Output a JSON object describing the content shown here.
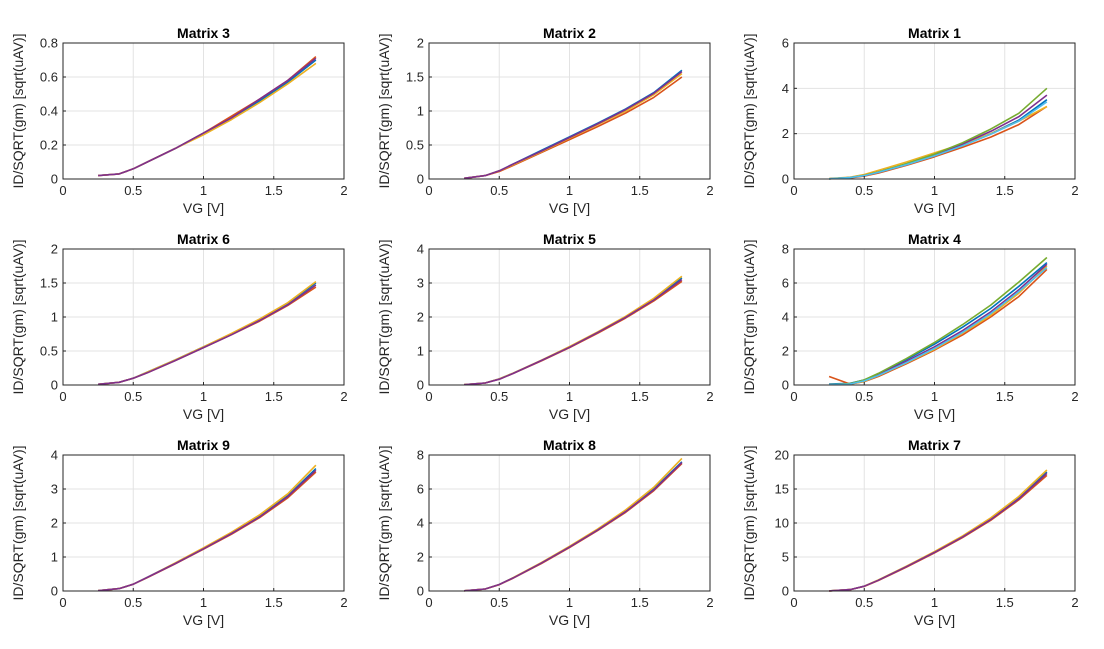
{
  "figure": {
    "shared_xlabel": "VG [V]",
    "shared_ylabel": "ID/SQRT(gm) [sqrt(uAV)]",
    "series_colors": [
      "#0072BD",
      "#D95319",
      "#EDB120",
      "#7E2F8E",
      "#77AC30",
      "#4DBEEE",
      "#A2142F"
    ]
  },
  "chart_data": [
    {
      "type": "line",
      "title": "Matrix 3",
      "xlabel": "VG [V]",
      "ylabel": "ID/SQRT(gm) [sqrt(uAV)]",
      "xlim": [
        0,
        2
      ],
      "ylim": [
        0,
        0.8
      ],
      "xticks": [
        0,
        0.5,
        1,
        1.5,
        2
      ],
      "xtick_labels": [
        "0",
        "0.5",
        "1",
        "1.5",
        "2"
      ],
      "yticks": [
        0,
        0.2,
        0.4,
        0.6,
        0.8
      ],
      "ytick_labels": [
        "0",
        "0.2",
        "0.4",
        "0.6",
        "0.8"
      ],
      "grid": true,
      "x": [
        0.25,
        0.4,
        0.5,
        0.6,
        0.8,
        1.0,
        1.2,
        1.4,
        1.6,
        1.8
      ],
      "series": [
        {
          "values": [
            0.02,
            0.03,
            0.06,
            0.1,
            0.18,
            0.27,
            0.36,
            0.46,
            0.57,
            0.7
          ]
        },
        {
          "values": [
            0.02,
            0.03,
            0.06,
            0.1,
            0.18,
            0.27,
            0.37,
            0.47,
            0.58,
            0.72
          ]
        },
        {
          "values": [
            0.02,
            0.03,
            0.06,
            0.1,
            0.18,
            0.26,
            0.35,
            0.45,
            0.56,
            0.68
          ]
        },
        {
          "values": [
            0.02,
            0.03,
            0.06,
            0.1,
            0.18,
            0.27,
            0.36,
            0.47,
            0.58,
            0.71
          ]
        }
      ]
    },
    {
      "type": "line",
      "title": "Matrix 2",
      "xlabel": "VG [V]",
      "ylabel": "ID/SQRT(gm) [sqrt(uAV)]",
      "xlim": [
        0,
        2
      ],
      "ylim": [
        0,
        2
      ],
      "xticks": [
        0,
        0.5,
        1,
        1.5,
        2
      ],
      "xtick_labels": [
        "0",
        "0.5",
        "1",
        "1.5",
        "2"
      ],
      "yticks": [
        0,
        0.5,
        1,
        1.5,
        2
      ],
      "ytick_labels": [
        "0",
        "0.5",
        "1",
        "1.5",
        "2"
      ],
      "grid": true,
      "x": [
        0.25,
        0.4,
        0.5,
        0.6,
        0.8,
        1.0,
        1.2,
        1.4,
        1.6,
        1.8
      ],
      "series": [
        {
          "values": [
            0.01,
            0.05,
            0.12,
            0.22,
            0.42,
            0.62,
            0.82,
            1.03,
            1.27,
            1.6
          ]
        },
        {
          "values": [
            0.01,
            0.05,
            0.11,
            0.2,
            0.39,
            0.58,
            0.77,
            0.97,
            1.2,
            1.5
          ]
        },
        {
          "values": [
            0.01,
            0.05,
            0.12,
            0.21,
            0.4,
            0.6,
            0.8,
            1.0,
            1.24,
            1.55
          ]
        },
        {
          "values": [
            0.01,
            0.05,
            0.12,
            0.22,
            0.41,
            0.61,
            0.81,
            1.02,
            1.26,
            1.58
          ]
        }
      ]
    },
    {
      "type": "line",
      "title": "Matrix 1",
      "xlabel": "VG [V]",
      "ylabel": "ID/SQRT(gm) [sqrt(uAV)]",
      "xlim": [
        0,
        2
      ],
      "ylim": [
        0,
        6
      ],
      "xticks": [
        0,
        0.5,
        1,
        1.5,
        2
      ],
      "xtick_labels": [
        "0",
        "0.5",
        "1",
        "1.5",
        "2"
      ],
      "yticks": [
        0,
        2,
        4,
        6
      ],
      "ytick_labels": [
        "0",
        "2",
        "4",
        "6"
      ],
      "grid": true,
      "x": [
        0.25,
        0.4,
        0.5,
        0.6,
        0.8,
        1.0,
        1.2,
        1.4,
        1.6,
        1.8
      ],
      "series": [
        {
          "values": [
            0.01,
            0.06,
            0.15,
            0.3,
            0.65,
            1.05,
            1.5,
            2.0,
            2.6,
            3.5
          ]
        },
        {
          "values": [
            0.01,
            0.05,
            0.13,
            0.26,
            0.6,
            0.98,
            1.4,
            1.85,
            2.4,
            3.2
          ]
        },
        {
          "values": [
            0.02,
            0.08,
            0.2,
            0.38,
            0.75,
            1.15,
            1.55,
            2.0,
            2.55,
            3.2
          ]
        },
        {
          "values": [
            0.01,
            0.06,
            0.15,
            0.3,
            0.66,
            1.07,
            1.55,
            2.1,
            2.75,
            3.7
          ]
        },
        {
          "values": [
            0.01,
            0.06,
            0.16,
            0.31,
            0.68,
            1.1,
            1.6,
            2.2,
            2.9,
            4.0
          ]
        },
        {
          "values": [
            0.01,
            0.06,
            0.15,
            0.29,
            0.63,
            1.02,
            1.47,
            1.97,
            2.55,
            3.4
          ]
        }
      ]
    },
    {
      "type": "line",
      "title": "Matrix 6",
      "xlabel": "VG [V]",
      "ylabel": "ID/SQRT(gm) [sqrt(uAV)]",
      "xlim": [
        0,
        2
      ],
      "ylim": [
        0,
        2
      ],
      "xticks": [
        0,
        0.5,
        1,
        1.5,
        2
      ],
      "xtick_labels": [
        "0",
        "0.5",
        "1",
        "1.5",
        "2"
      ],
      "yticks": [
        0,
        0.5,
        1,
        1.5,
        2
      ],
      "ytick_labels": [
        "0",
        "0.5",
        "1",
        "1.5",
        "2"
      ],
      "grid": true,
      "x": [
        0.25,
        0.4,
        0.5,
        0.6,
        0.8,
        1.0,
        1.2,
        1.4,
        1.6,
        1.8
      ],
      "series": [
        {
          "values": [
            0.01,
            0.04,
            0.1,
            0.19,
            0.37,
            0.56,
            0.75,
            0.96,
            1.2,
            1.5
          ]
        },
        {
          "values": [
            0.01,
            0.04,
            0.1,
            0.18,
            0.36,
            0.55,
            0.74,
            0.94,
            1.17,
            1.44
          ]
        },
        {
          "values": [
            0.01,
            0.04,
            0.1,
            0.19,
            0.37,
            0.56,
            0.76,
            0.97,
            1.21,
            1.52
          ]
        },
        {
          "values": [
            0.01,
            0.04,
            0.1,
            0.18,
            0.36,
            0.55,
            0.74,
            0.95,
            1.18,
            1.47
          ]
        }
      ]
    },
    {
      "type": "line",
      "title": "Matrix 5",
      "xlabel": "VG [V]",
      "ylabel": "ID/SQRT(gm) [sqrt(uAV)]",
      "xlim": [
        0,
        2
      ],
      "ylim": [
        0,
        4
      ],
      "xticks": [
        0,
        0.5,
        1,
        1.5,
        2
      ],
      "xtick_labels": [
        "0",
        "0.5",
        "1",
        "1.5",
        "2"
      ],
      "yticks": [
        0,
        1,
        2,
        3,
        4
      ],
      "ytick_labels": [
        "0",
        "1",
        "2",
        "3",
        "4"
      ],
      "grid": true,
      "x": [
        0.25,
        0.4,
        0.5,
        0.6,
        0.8,
        1.0,
        1.2,
        1.4,
        1.6,
        1.8
      ],
      "series": [
        {
          "values": [
            0.01,
            0.06,
            0.18,
            0.35,
            0.72,
            1.12,
            1.55,
            2.0,
            2.52,
            3.15
          ]
        },
        {
          "values": [
            0.01,
            0.06,
            0.17,
            0.34,
            0.71,
            1.1,
            1.52,
            1.97,
            2.47,
            3.05
          ]
        },
        {
          "values": [
            0.01,
            0.06,
            0.18,
            0.35,
            0.73,
            1.13,
            1.56,
            2.02,
            2.55,
            3.2
          ]
        },
        {
          "values": [
            0.01,
            0.06,
            0.17,
            0.34,
            0.72,
            1.11,
            1.54,
            1.99,
            2.5,
            3.1
          ]
        }
      ]
    },
    {
      "type": "line",
      "title": "Matrix 4",
      "xlabel": "VG [V]",
      "ylabel": "ID/SQRT(gm) [sqrt(uAV)]",
      "xlim": [
        0,
        2
      ],
      "ylim": [
        0,
        8
      ],
      "xticks": [
        0,
        0.5,
        1,
        1.5,
        2
      ],
      "xtick_labels": [
        "0",
        "0.5",
        "1",
        "1.5",
        "2"
      ],
      "yticks": [
        0,
        2,
        4,
        6,
        8
      ],
      "ytick_labels": [
        "0",
        "2",
        "4",
        "6",
        "8"
      ],
      "grid": true,
      "x": [
        0.25,
        0.4,
        0.5,
        0.6,
        0.8,
        1.0,
        1.2,
        1.4,
        1.6,
        1.8
      ],
      "series": [
        {
          "values": [
            0.05,
            0.1,
            0.3,
            0.65,
            1.5,
            2.4,
            3.4,
            4.5,
            5.8,
            7.2
          ]
        },
        {
          "values": [
            0.5,
            0.05,
            0.2,
            0.5,
            1.25,
            2.05,
            2.95,
            4.0,
            5.2,
            6.8
          ]
        },
        {
          "values": [
            0.02,
            0.06,
            0.22,
            0.55,
            1.3,
            2.1,
            3.05,
            4.1,
            5.4,
            7.0
          ]
        },
        {
          "values": [
            0.02,
            0.07,
            0.26,
            0.6,
            1.4,
            2.25,
            3.2,
            4.3,
            5.6,
            7.1
          ]
        },
        {
          "values": [
            0.02,
            0.08,
            0.3,
            0.68,
            1.55,
            2.5,
            3.55,
            4.7,
            6.05,
            7.5
          ]
        },
        {
          "values": [
            0.02,
            0.06,
            0.24,
            0.56,
            1.32,
            2.15,
            3.1,
            4.2,
            5.5,
            6.9
          ]
        }
      ]
    },
    {
      "type": "line",
      "title": "Matrix 9",
      "xlabel": "VG [V]",
      "ylabel": "ID/SQRT(gm) [sqrt(uAV)]",
      "xlim": [
        0,
        2
      ],
      "ylim": [
        0,
        4
      ],
      "xticks": [
        0,
        0.5,
        1,
        1.5,
        2
      ],
      "xtick_labels": [
        "0",
        "0.5",
        "1",
        "1.5",
        "2"
      ],
      "yticks": [
        0,
        1,
        2,
        3,
        4
      ],
      "ytick_labels": [
        "0",
        "1",
        "2",
        "3",
        "4"
      ],
      "grid": true,
      "x": [
        0.25,
        0.4,
        0.5,
        0.6,
        0.8,
        1.0,
        1.2,
        1.4,
        1.6,
        1.8
      ],
      "series": [
        {
          "values": [
            0.01,
            0.07,
            0.2,
            0.4,
            0.82,
            1.25,
            1.7,
            2.2,
            2.8,
            3.6
          ]
        },
        {
          "values": [
            0.01,
            0.07,
            0.2,
            0.39,
            0.8,
            1.23,
            1.67,
            2.16,
            2.74,
            3.5
          ]
        },
        {
          "values": [
            0.01,
            0.07,
            0.2,
            0.4,
            0.83,
            1.27,
            1.73,
            2.24,
            2.86,
            3.7
          ]
        },
        {
          "values": [
            0.01,
            0.07,
            0.2,
            0.4,
            0.81,
            1.24,
            1.69,
            2.18,
            2.78,
            3.55
          ]
        }
      ]
    },
    {
      "type": "line",
      "title": "Matrix 8",
      "xlabel": "VG [V]",
      "ylabel": "ID/SQRT(gm) [sqrt(uAV)]",
      "xlim": [
        0,
        2
      ],
      "ylim": [
        0,
        8
      ],
      "xticks": [
        0,
        0.5,
        1,
        1.5,
        2
      ],
      "xtick_labels": [
        "0",
        "0.5",
        "1",
        "1.5",
        "2"
      ],
      "yticks": [
        0,
        2,
        4,
        6,
        8
      ],
      "ytick_labels": [
        "0",
        "2",
        "4",
        "6",
        "8"
      ],
      "grid": true,
      "x": [
        0.25,
        0.4,
        0.5,
        0.6,
        0.8,
        1.0,
        1.2,
        1.4,
        1.6,
        1.8
      ],
      "series": [
        {
          "values": [
            0.01,
            0.12,
            0.38,
            0.78,
            1.65,
            2.6,
            3.6,
            4.7,
            6.0,
            7.6
          ]
        },
        {
          "values": [
            0.01,
            0.12,
            0.37,
            0.76,
            1.62,
            2.55,
            3.55,
            4.63,
            5.9,
            7.5
          ]
        },
        {
          "values": [
            0.01,
            0.12,
            0.38,
            0.79,
            1.67,
            2.63,
            3.65,
            4.77,
            6.1,
            7.8
          ]
        },
        {
          "values": [
            0.01,
            0.12,
            0.38,
            0.77,
            1.64,
            2.58,
            3.58,
            4.67,
            5.95,
            7.55
          ]
        }
      ]
    },
    {
      "type": "line",
      "title": "Matrix 7",
      "xlabel": "VG [V]",
      "ylabel": "ID/SQRT(gm) [sqrt(uAV)]",
      "xlim": [
        0,
        2
      ],
      "ylim": [
        0,
        20
      ],
      "xticks": [
        0,
        0.5,
        1,
        1.5,
        2
      ],
      "xtick_labels": [
        "0",
        "0.5",
        "1",
        "1.5",
        "2"
      ],
      "yticks": [
        0,
        5,
        10,
        15,
        20
      ],
      "ytick_labels": [
        "0",
        "5",
        "10",
        "15",
        "20"
      ],
      "grid": true,
      "x": [
        0.25,
        0.4,
        0.5,
        0.6,
        0.8,
        1.0,
        1.2,
        1.4,
        1.6,
        1.8
      ],
      "series": [
        {
          "values": [
            0.01,
            0.2,
            0.7,
            1.6,
            3.6,
            5.7,
            8.0,
            10.6,
            13.7,
            17.5
          ]
        },
        {
          "values": [
            0.01,
            0.2,
            0.68,
            1.55,
            3.5,
            5.6,
            7.85,
            10.4,
            13.4,
            17.0
          ]
        },
        {
          "values": [
            0.01,
            0.2,
            0.72,
            1.62,
            3.65,
            5.8,
            8.1,
            10.75,
            13.9,
            17.8
          ]
        },
        {
          "values": [
            0.01,
            0.2,
            0.7,
            1.58,
            3.57,
            5.68,
            7.95,
            10.5,
            13.55,
            17.3
          ]
        }
      ]
    }
  ]
}
